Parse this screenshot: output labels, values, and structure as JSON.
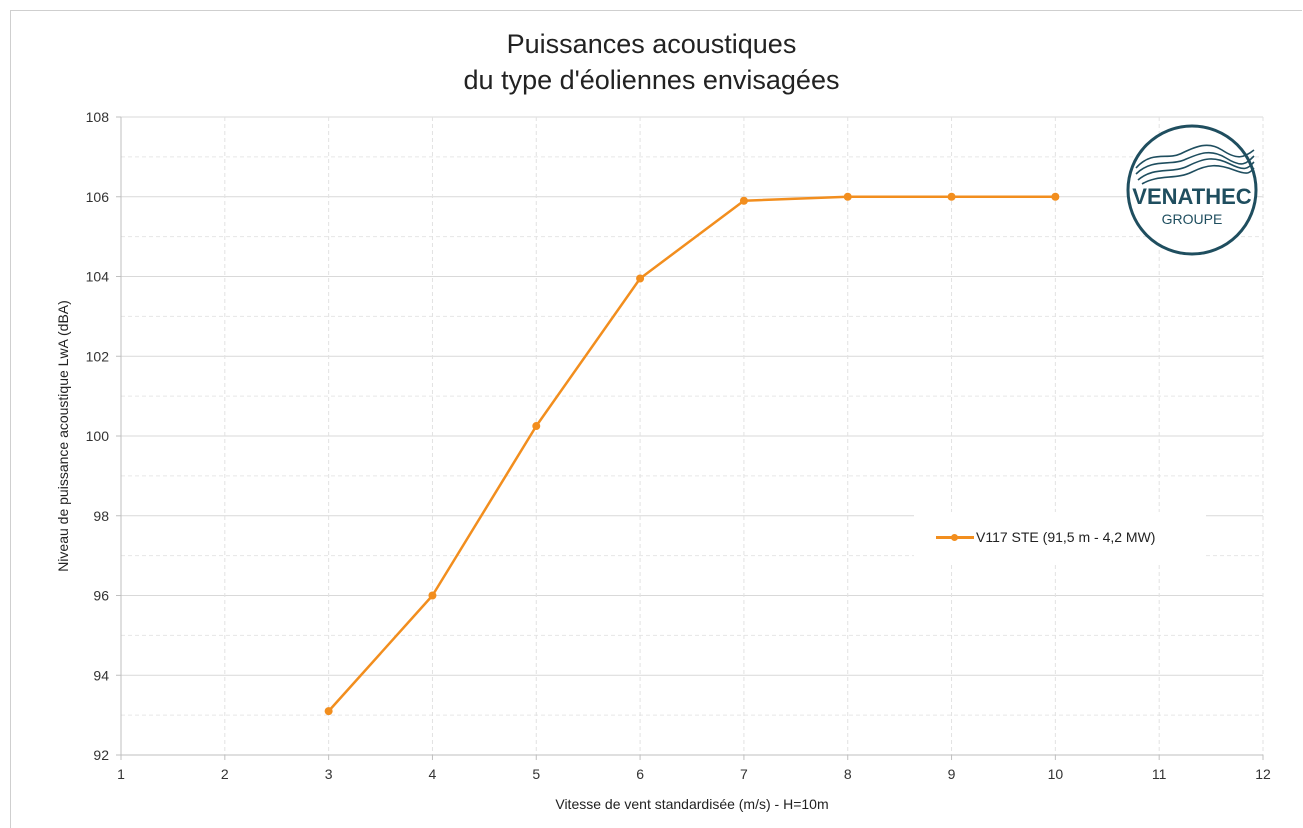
{
  "chart_data": {
    "type": "line",
    "title": "Puissances acoustiques",
    "subtitle": "du type d'éoliennes envisagées",
    "xlabel": "Vitesse de vent standardisée (m/s) - H=10m",
    "ylabel": "Niveau de puissance acoustique LwA (dBA)",
    "xlim": [
      1,
      12
    ],
    "ylim": [
      92,
      108
    ],
    "xticks": [
      "1",
      "2",
      "3",
      "4",
      "5",
      "6",
      "7",
      "8",
      "9",
      "10",
      "11",
      "12"
    ],
    "yticks": [
      "92",
      "94",
      "96",
      "98",
      "100",
      "102",
      "104",
      "106",
      "108"
    ],
    "grid": true,
    "legend_position": "right",
    "series": [
      {
        "name": "V117 STE (91,5 m - 4,2 MW)",
        "color": "#f28e1e",
        "x": [
          3,
          4,
          5,
          6,
          7,
          8,
          9,
          10
        ],
        "y": [
          93.1,
          96.0,
          100.25,
          103.95,
          105.9,
          106.0,
          106.0,
          106.0
        ]
      }
    ]
  },
  "logo": {
    "name": "VENATHEC",
    "sub": "GROUPE",
    "color": "#1f4e5f"
  }
}
